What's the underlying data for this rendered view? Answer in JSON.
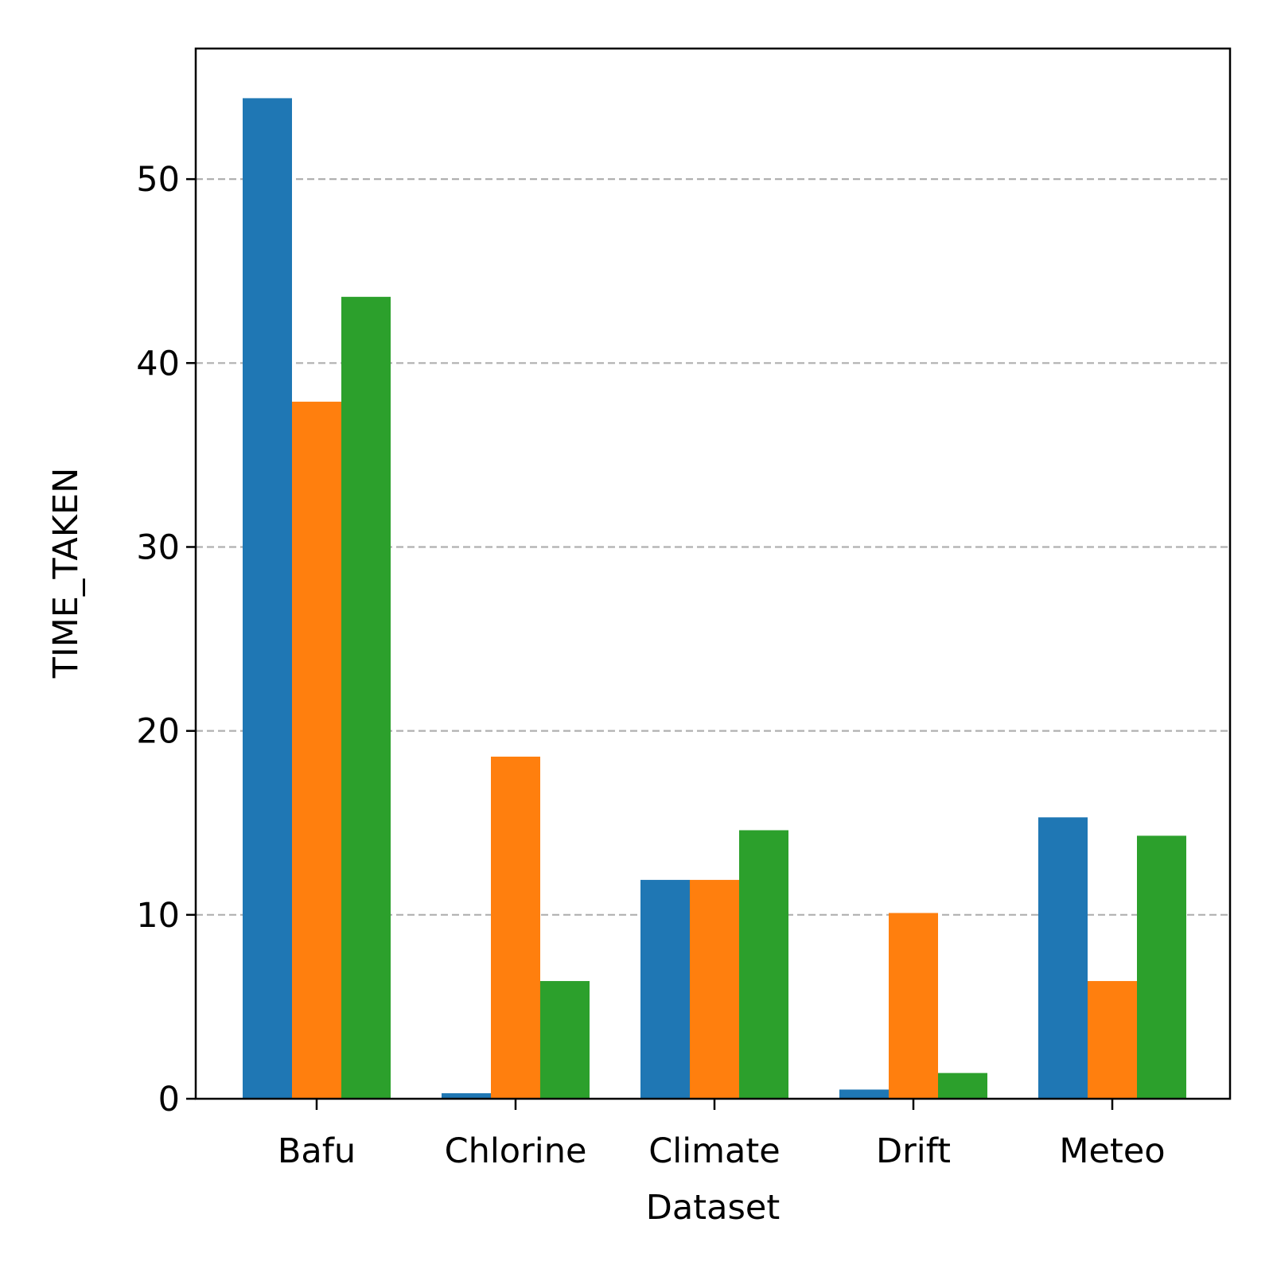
{
  "chart_data": {
    "type": "bar",
    "title": "",
    "xlabel": "Dataset",
    "ylabel": "TIME_TAKEN",
    "categories": [
      "Bafu",
      "Chlorine",
      "Climate",
      "Drift",
      "Meteo"
    ],
    "series": [
      {
        "color": "#1f77b4",
        "values": [
          54.4,
          0.3,
          11.9,
          0.5,
          15.3
        ]
      },
      {
        "color": "#ff7f0e",
        "values": [
          37.9,
          18.6,
          11.9,
          10.1,
          6.4
        ]
      },
      {
        "color": "#2ca02c",
        "values": [
          43.6,
          6.4,
          14.6,
          1.4,
          14.3
        ]
      }
    ],
    "ylim": [
      0,
      57.1
    ],
    "yticks": [
      0,
      10,
      20,
      30,
      40,
      50
    ],
    "grid": {
      "axis": "y",
      "style": "dashed",
      "color": "#b0b0b0"
    },
    "legend": "none"
  }
}
